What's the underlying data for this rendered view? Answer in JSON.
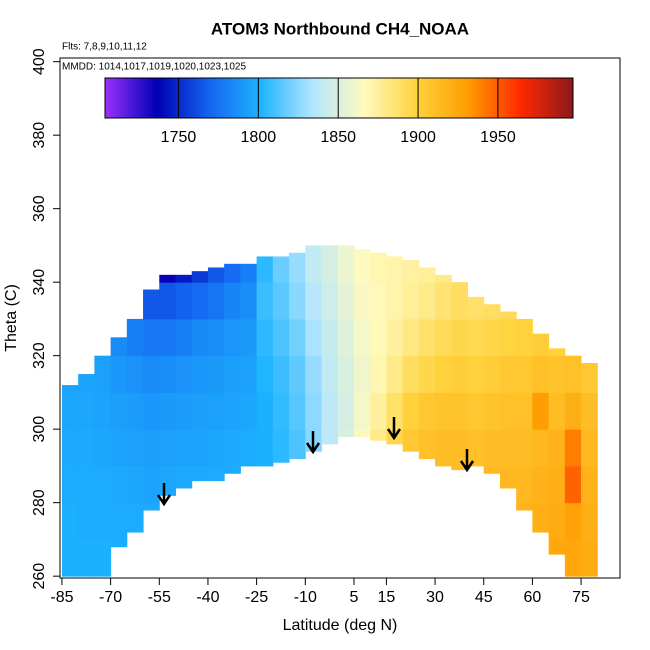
{
  "chart_data": {
    "type": "heatmap",
    "title": "ATOM3 Northbound CH4_NOAA",
    "annotations": [
      "Flts: 7,8,9,10,11,12",
      "MMDD: 1014,1017,1019,1020,1023,1025"
    ],
    "x_label": "Latitude (deg N)",
    "y_label": "Theta (C)",
    "xlim": [
      -85.6,
      87
    ],
    "xticks": [
      -85,
      -70,
      -55,
      -40,
      -25,
      -10,
      5,
      15,
      30,
      45,
      60,
      75
    ],
    "ylim": [
      259.5,
      401
    ],
    "yticks": [
      260,
      280,
      300,
      320,
      340,
      360,
      380,
      400
    ],
    "lat_edges": [
      -85,
      -80,
      -75,
      -70,
      -65,
      -60,
      -55,
      -50,
      -45,
      -40,
      -35,
      -30,
      -25,
      -20,
      -15,
      -10,
      -5,
      0,
      5,
      10,
      15,
      20,
      25,
      30,
      35,
      40,
      45,
      50,
      55,
      60,
      65,
      70,
      75,
      80
    ],
    "theta_bins": [
      260,
      270,
      280,
      290,
      300,
      310,
      320,
      330,
      340,
      350
    ],
    "theta_bottom": [
      260,
      260,
      260,
      268,
      272,
      278,
      282,
      284,
      286,
      286,
      288,
      290,
      290,
      291,
      292,
      294,
      296,
      298,
      298,
      297,
      296,
      294,
      292,
      290,
      289,
      290,
      288,
      284,
      278,
      272,
      266,
      260,
      260
    ],
    "theta_top": [
      312,
      315,
      320,
      325,
      330,
      338,
      342,
      342,
      343,
      344,
      345,
      345,
      347,
      347,
      348,
      350,
      350,
      350,
      349,
      348,
      347,
      346,
      344,
      342,
      340,
      336,
      334,
      332,
      330,
      326,
      322,
      320,
      318
    ],
    "values": [
      [
        1800,
        1800,
        1798,
        1797,
        1796,
        1795,
        null,
        null,
        null
      ],
      [
        1800,
        1799,
        1798,
        1797,
        1796,
        1795,
        null,
        null,
        null
      ],
      [
        1800,
        1799,
        1798,
        1796,
        1795,
        1794,
        null,
        null,
        null
      ],
      [
        1799,
        1798,
        1797,
        1795,
        1793,
        1790,
        1785,
        null,
        null
      ],
      [
        null,
        1798,
        1796,
        1794,
        1792,
        1788,
        1780,
        null,
        null
      ],
      [
        null,
        1797,
        1795,
        1793,
        1790,
        1785,
        1778,
        1765,
        null
      ],
      [
        null,
        null,
        1796,
        1794,
        1791,
        1786,
        1778,
        1765,
        1735
      ],
      [
        null,
        null,
        1797,
        1795,
        1792,
        1788,
        1780,
        1768,
        1745
      ],
      [
        null,
        null,
        1797,
        1795,
        1793,
        1790,
        1784,
        1772,
        1755
      ],
      [
        null,
        null,
        1798,
        1796,
        1794,
        1791,
        1786,
        1776,
        1765
      ],
      [
        null,
        null,
        1798,
        1797,
        1795,
        1793,
        1789,
        1782,
        1772
      ],
      [
        null,
        null,
        null,
        1798,
        1796,
        1794,
        1791,
        1786,
        1780
      ],
      [
        null,
        null,
        null,
        1800,
        1800,
        1802,
        1805,
        1808,
        1805
      ],
      [
        null,
        null,
        null,
        1805,
        1806,
        1808,
        1812,
        1815,
        1818
      ],
      [
        null,
        null,
        null,
        1812,
        1814,
        1816,
        1820,
        1825,
        1828
      ],
      [
        null,
        null,
        null,
        1825,
        1826,
        1828,
        1832,
        1836,
        1840
      ],
      [
        null,
        null,
        null,
        1838,
        1838,
        1840,
        1842,
        1845,
        1848
      ],
      [
        null,
        null,
        null,
        1850,
        1848,
        1850,
        1852,
        1855,
        1858
      ],
      [
        null,
        null,
        null,
        1865,
        1862,
        1860,
        1862,
        1864,
        1866
      ],
      [
        null,
        null,
        null,
        1880,
        1875,
        1870,
        1868,
        1868,
        1870
      ],
      [
        null,
        null,
        null,
        1895,
        1888,
        1880,
        1875,
        1872,
        1872
      ],
      [
        null,
        null,
        null,
        1905,
        1900,
        1890,
        1882,
        1876,
        1874
      ],
      [
        null,
        null,
        null,
        1910,
        1905,
        1895,
        1888,
        1880,
        1876
      ],
      [
        null,
        null,
        null,
        1912,
        1908,
        1900,
        1892,
        1886,
        1880
      ],
      [
        null,
        null,
        1912,
        1912,
        1908,
        1902,
        1895,
        1890,
        null
      ],
      [
        null,
        null,
        null,
        1910,
        1906,
        1900,
        1894,
        1888,
        null
      ],
      [
        null,
        null,
        1915,
        1912,
        1908,
        1902,
        1896,
        1890,
        null
      ],
      [
        null,
        null,
        1915,
        1912,
        1910,
        1905,
        1898,
        1892,
        null
      ],
      [
        null,
        1918,
        1915,
        1912,
        1910,
        1906,
        1900,
        null,
        null
      ],
      [
        null,
        1920,
        1918,
        1915,
        1930,
        1910,
        1902,
        null,
        null
      ],
      [
        1925,
        1922,
        1920,
        1918,
        1912,
        1908,
        1900,
        null,
        null
      ],
      [
        1925,
        1928,
        1948,
        1940,
        1920,
        1910,
        null,
        null,
        null
      ],
      [
        1922,
        1920,
        1918,
        1915,
        1912,
        1905,
        null,
        null,
        null
      ]
    ],
    "colorbar": {
      "lim": [
        1704,
        1997
      ],
      "ticks": [
        1750,
        1800,
        1850,
        1900,
        1950
      ],
      "colors": [
        "#9b30ff",
        "#0000b4",
        "#1464f0",
        "#1eb4ff",
        "#b4e6ff",
        "#fffabe",
        "#ffd23c",
        "#ff9b00",
        "#ff2800",
        "#8b1a1a"
      ]
    }
  }
}
